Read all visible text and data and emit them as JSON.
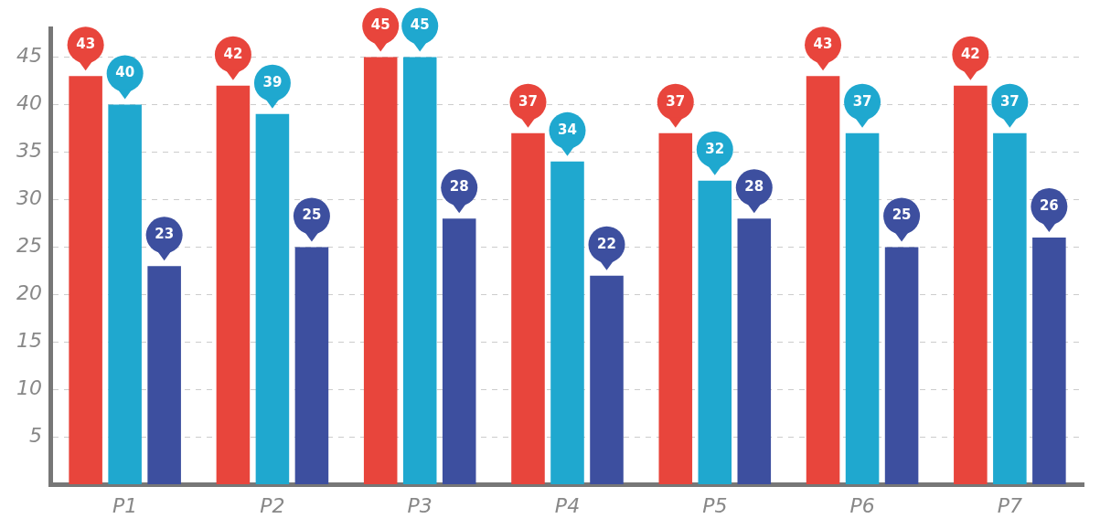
{
  "chart_data": {
    "type": "bar",
    "categories": [
      "P1",
      "P2",
      "P3",
      "P4",
      "P5",
      "P6",
      "P7"
    ],
    "series": [
      {
        "color": "#e8453c",
        "values": [
          43,
          42,
          45,
          37,
          37,
          43,
          42
        ]
      },
      {
        "color": "#1fa8cf",
        "values": [
          40,
          39,
          45,
          34,
          32,
          37,
          37
        ]
      },
      {
        "color": "#3d4f9f",
        "values": [
          23,
          25,
          28,
          22,
          28,
          25,
          26
        ]
      }
    ],
    "ylim": [
      0,
      48
    ],
    "yticks": [
      {
        "value": 0,
        "label": null
      },
      5,
      10,
      15,
      20,
      25,
      30,
      35,
      40,
      45
    ],
    "grid": "y",
    "data_labels": true,
    "legend": false
  }
}
